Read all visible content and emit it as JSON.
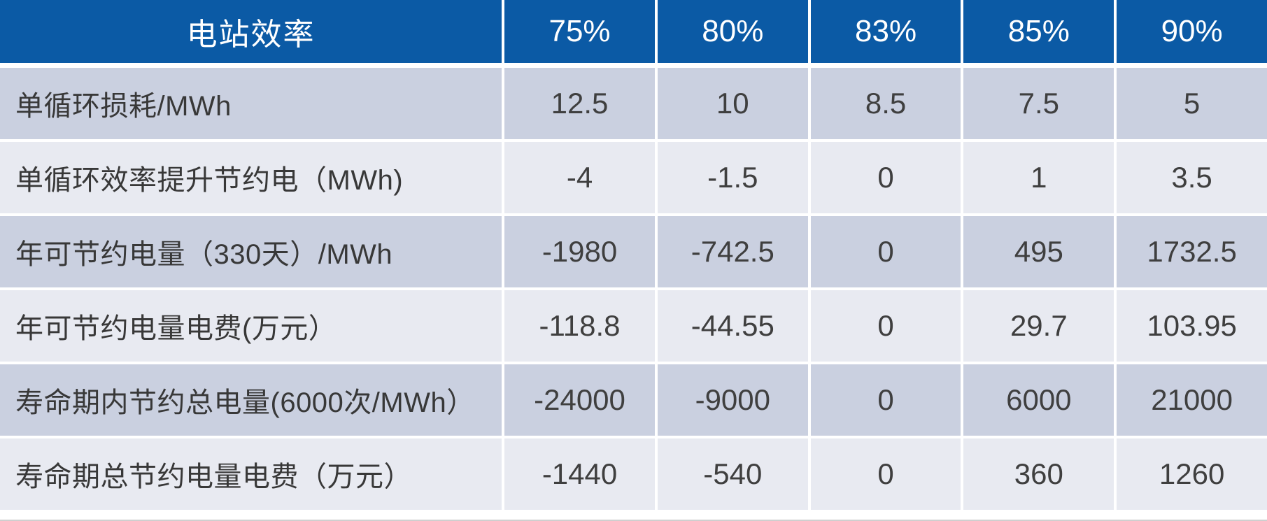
{
  "table": {
    "header": {
      "label": "电站效率",
      "columns": [
        "75%",
        "80%",
        "83%",
        "85%",
        "90%"
      ]
    },
    "rows": [
      {
        "label": "单循环损耗/MWh",
        "values": [
          "12.5",
          "10",
          "8.5",
          "7.5",
          "5"
        ]
      },
      {
        "label": "单循环效率提升节约电（MWh)",
        "values": [
          "-4",
          "-1.5",
          "0",
          "1",
          "3.5"
        ]
      },
      {
        "label": "年可节约电量（330天）/MWh",
        "values": [
          "-1980",
          "-742.5",
          "0",
          "495",
          "1732.5"
        ]
      },
      {
        "label": "年可节约电量电费(万元）",
        "values": [
          "-118.8",
          "-44.55",
          "0",
          "29.7",
          "103.95"
        ]
      },
      {
        "label": "寿命期内节约总电量(6000次/MWh）",
        "values": [
          "-24000",
          "-9000",
          "0",
          "6000",
          "21000"
        ]
      },
      {
        "label": "寿命期总节约电量电费（万元）",
        "values": [
          "-1440",
          "-540",
          "0",
          "360",
          "1260"
        ]
      }
    ],
    "colors": {
      "header_bg": "#0b5aa5",
      "row_odd_bg": "#cad0e0",
      "row_even_bg": "#e8eaf1",
      "header_text": "#ffffff",
      "body_text": "#3f3f3f"
    }
  },
  "chart_data": {
    "type": "table",
    "title": "电站效率",
    "categories": [
      "75%",
      "80%",
      "83%",
      "85%",
      "90%"
    ],
    "series": [
      {
        "name": "单循环损耗/MWh",
        "values": [
          12.5,
          10,
          8.5,
          7.5,
          5
        ]
      },
      {
        "name": "单循环效率提升节约电（MWh)",
        "values": [
          -4,
          -1.5,
          0,
          1,
          3.5
        ]
      },
      {
        "name": "年可节约电量（330天）/MWh",
        "values": [
          -1980,
          -742.5,
          0,
          495,
          1732.5
        ]
      },
      {
        "name": "年可节约电量电费(万元）",
        "values": [
          -118.8,
          -44.55,
          0,
          29.7,
          103.95
        ]
      },
      {
        "name": "寿命期内节约总电量(6000次/MWh）",
        "values": [
          -24000,
          -9000,
          0,
          6000,
          21000
        ]
      },
      {
        "name": "寿命期总节约电量电费（万元）",
        "values": [
          -1440,
          -540,
          0,
          360,
          1260
        ]
      }
    ],
    "layout": {
      "header_style": "blue-banded",
      "row_banding": "alternating",
      "value_alignment": "center"
    }
  }
}
